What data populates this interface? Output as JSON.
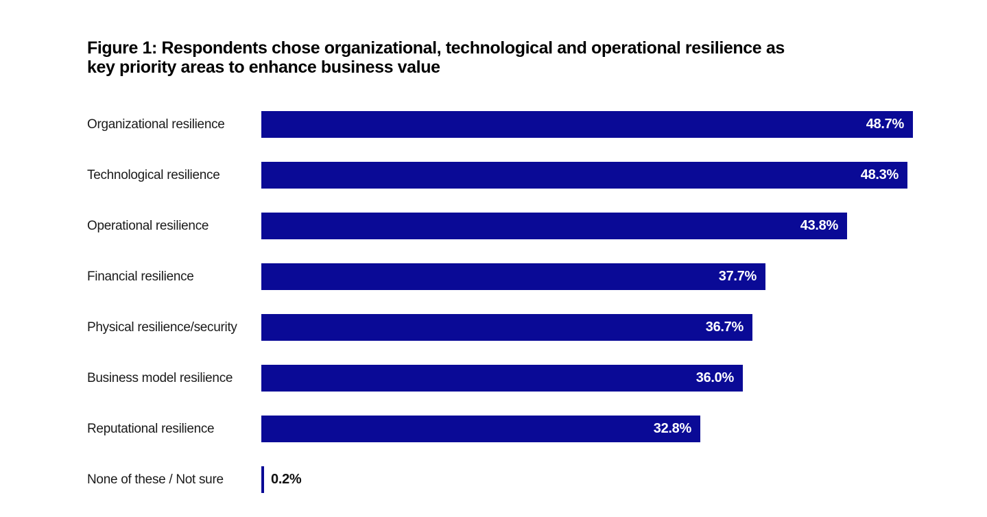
{
  "page": {
    "background_color": "#ffffff"
  },
  "chart_data": {
    "type": "bar",
    "orientation": "horizontal",
    "title": "Figure 1: Respondents chose organizational, technological and operational resilience as key priority areas to enhance business value",
    "title_lines": [
      "Figure 1: Respondents chose organizational, technological and operational resilience as",
      "key priority areas to enhance business value"
    ],
    "categories": [
      "Organizational resilience",
      "Technological resilience",
      "Operational resilience",
      "Financial resilience",
      "Physical resilience/security",
      "Business model resilience",
      "Reputational resilience",
      "None of these / Not sure"
    ],
    "values": [
      48.7,
      48.3,
      43.8,
      37.7,
      36.7,
      36.0,
      32.8,
      0.2
    ],
    "value_labels": [
      "48.7%",
      "48.3%",
      "43.8%",
      "37.7%",
      "36.7%",
      "36.0%",
      "32.8%",
      "0.2%"
    ],
    "xlabel": "",
    "ylabel": "",
    "xlim": [
      0,
      48.7
    ],
    "grid": false,
    "legend": false,
    "axes_hidden": true,
    "bar_color": "#0a0a96",
    "value_label_color_inside": "#ffffff",
    "value_label_color_outside": "#111111",
    "title_color": "#000000",
    "category_label_color": "#1a1a1a"
  }
}
